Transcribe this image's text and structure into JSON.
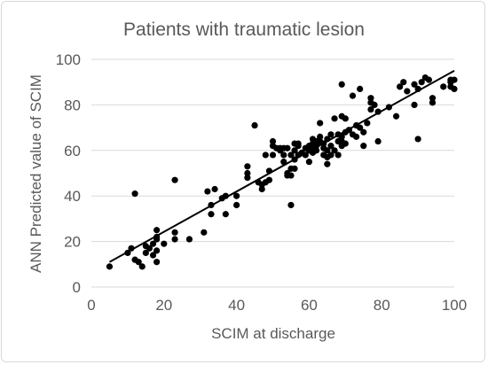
{
  "chart_data": {
    "type": "scatter",
    "title": "Patients with traumatic lesion",
    "xlabel": "SCIM at discharge",
    "ylabel": "ANN Predicted value of SCIM",
    "xlim": [
      0,
      100
    ],
    "ylim": [
      0,
      100
    ],
    "xticks": [
      "0",
      "20",
      "40",
      "60",
      "80",
      "100"
    ],
    "yticks": [
      "0",
      "20",
      "40",
      "60",
      "80",
      "100"
    ],
    "grid": "horizontal",
    "legend": "none",
    "marker_color": "#000000",
    "trendline": {
      "x": [
        5,
        100
      ],
      "y": [
        11,
        95
      ],
      "color": "#000000"
    },
    "points": [
      [
        5,
        9
      ],
      [
        10,
        15
      ],
      [
        11,
        17
      ],
      [
        12,
        41
      ],
      [
        12,
        12
      ],
      [
        13,
        11
      ],
      [
        14,
        9
      ],
      [
        15,
        15
      ],
      [
        15,
        18
      ],
      [
        16,
        17
      ],
      [
        17,
        14
      ],
      [
        17,
        19
      ],
      [
        18,
        11
      ],
      [
        18,
        16
      ],
      [
        18,
        21
      ],
      [
        18,
        22
      ],
      [
        18,
        25
      ],
      [
        20,
        19
      ],
      [
        23,
        47
      ],
      [
        23,
        21
      ],
      [
        23,
        24
      ],
      [
        27,
        21
      ],
      [
        31,
        24
      ],
      [
        32,
        42
      ],
      [
        33,
        32
      ],
      [
        33,
        36
      ],
      [
        34,
        43
      ],
      [
        36,
        39
      ],
      [
        37,
        40
      ],
      [
        37,
        32
      ],
      [
        40,
        40
      ],
      [
        40,
        36
      ],
      [
        43,
        48
      ],
      [
        43,
        50
      ],
      [
        43,
        53
      ],
      [
        45,
        71
      ],
      [
        46,
        46
      ],
      [
        47,
        45
      ],
      [
        47,
        43
      ],
      [
        48,
        46
      ],
      [
        48,
        58
      ],
      [
        49,
        47
      ],
      [
        49,
        51
      ],
      [
        50,
        58
      ],
      [
        50,
        62
      ],
      [
        50,
        64
      ],
      [
        51,
        61
      ],
      [
        52,
        60
      ],
      [
        52,
        61
      ],
      [
        53,
        55
      ],
      [
        53,
        58
      ],
      [
        53,
        61
      ],
      [
        54,
        49
      ],
      [
        54,
        50
      ],
      [
        54,
        61
      ],
      [
        55,
        36
      ],
      [
        55,
        49
      ],
      [
        55,
        52
      ],
      [
        55,
        58
      ],
      [
        56,
        52
      ],
      [
        56,
        56
      ],
      [
        56,
        60
      ],
      [
        56,
        63
      ],
      [
        57,
        63
      ],
      [
        57,
        58
      ],
      [
        57,
        62
      ],
      [
        58,
        59
      ],
      [
        59,
        58
      ],
      [
        59,
        61
      ],
      [
        60,
        55
      ],
      [
        60,
        60
      ],
      [
        60,
        62
      ],
      [
        61,
        59
      ],
      [
        61,
        62
      ],
      [
        61,
        63
      ],
      [
        61,
        65
      ],
      [
        62,
        60
      ],
      [
        62,
        62
      ],
      [
        62,
        64
      ],
      [
        63,
        64
      ],
      [
        63,
        66
      ],
      [
        63,
        72
      ],
      [
        64,
        61
      ],
      [
        64,
        63
      ],
      [
        64,
        58
      ],
      [
        65,
        54
      ],
      [
        65,
        57
      ],
      [
        65,
        65
      ],
      [
        65,
        60
      ],
      [
        66,
        58
      ],
      [
        66,
        62
      ],
      [
        66,
        67
      ],
      [
        67,
        60
      ],
      [
        67,
        74
      ],
      [
        68,
        58
      ],
      [
        68,
        64
      ],
      [
        68,
        67
      ],
      [
        69,
        66
      ],
      [
        69,
        62
      ],
      [
        69,
        64
      ],
      [
        69,
        75
      ],
      [
        69,
        89
      ],
      [
        70,
        63
      ],
      [
        70,
        68
      ],
      [
        70,
        74
      ],
      [
        71,
        69
      ],
      [
        72,
        67
      ],
      [
        72,
        84
      ],
      [
        73,
        66
      ],
      [
        73,
        71
      ],
      [
        74,
        70
      ],
      [
        74,
        87
      ],
      [
        75,
        62
      ],
      [
        75,
        68
      ],
      [
        76,
        72
      ],
      [
        77,
        78
      ],
      [
        77,
        81
      ],
      [
        77,
        83
      ],
      [
        78,
        80
      ],
      [
        79,
        64
      ],
      [
        79,
        77
      ],
      [
        82,
        79
      ],
      [
        84,
        75
      ],
      [
        85,
        88
      ],
      [
        86,
        90
      ],
      [
        87,
        86
      ],
      [
        89,
        80
      ],
      [
        89,
        89
      ],
      [
        90,
        65
      ],
      [
        90,
        87
      ],
      [
        91,
        90
      ],
      [
        92,
        92
      ],
      [
        93,
        91
      ],
      [
        94,
        81
      ],
      [
        94,
        83
      ],
      [
        97,
        88
      ],
      [
        99,
        91
      ],
      [
        99,
        88
      ],
      [
        99,
        90
      ],
      [
        100,
        87
      ],
      [
        100,
        91
      ]
    ]
  }
}
